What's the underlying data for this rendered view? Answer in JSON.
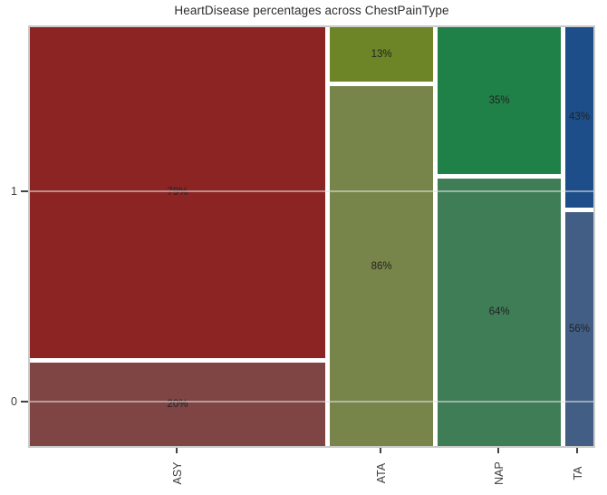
{
  "chart_data": {
    "type": "mosaic",
    "title": "HeartDisease percentages across ChestPainType",
    "xlabel": "",
    "ylabel": "",
    "x_axis_categories": [
      "ASY",
      "ATA",
      "NAP",
      "TA"
    ],
    "y_tick_labels": {
      "one": "1",
      "zero": "0"
    },
    "legend": "none",
    "grid": "faint horizontal lines at y ticks",
    "columns": [
      {
        "category": "ASY",
        "width_weight": 52.4,
        "segments": [
          {
            "heart_disease": "1",
            "pct": 79,
            "label": "79%",
            "color": "#8b2423"
          },
          {
            "heart_disease": "0",
            "pct": 20,
            "label": "20%",
            "color": "#7e4544"
          }
        ]
      },
      {
        "category": "ATA",
        "width_weight": 18.4,
        "segments": [
          {
            "heart_disease": "1",
            "pct": 13,
            "label": "13%",
            "color": "#6d8526"
          },
          {
            "heart_disease": "0",
            "pct": 86,
            "label": "86%",
            "color": "#77854a"
          }
        ]
      },
      {
        "category": "NAP",
        "width_weight": 21.8,
        "segments": [
          {
            "heart_disease": "1",
            "pct": 35,
            "label": "35%",
            "color": "#1f8048"
          },
          {
            "heart_disease": "0",
            "pct": 64,
            "label": "64%",
            "color": "#3f7d57"
          }
        ]
      },
      {
        "category": "TA",
        "width_weight": 5.0,
        "segments": [
          {
            "heart_disease": "1",
            "pct": 43,
            "label": "43%",
            "color": "#1d4e89"
          },
          {
            "heart_disease": "0",
            "pct": 56,
            "label": "56%",
            "color": "#425e85"
          }
        ]
      }
    ]
  }
}
